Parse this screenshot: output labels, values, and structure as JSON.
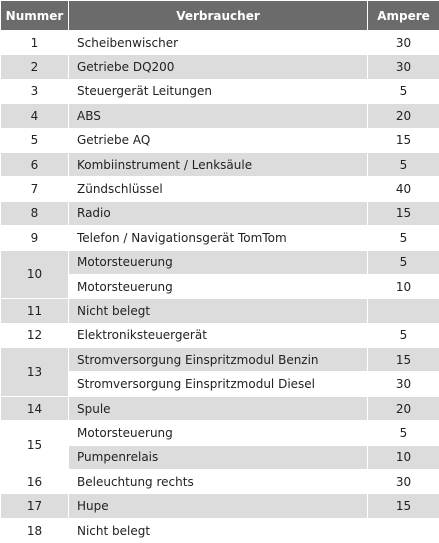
{
  "table": {
    "headers": [
      "Nummer",
      "Verbraucher",
      "Ampere"
    ],
    "rows": [
      {
        "nummer": 1,
        "entries": [
          {
            "verbraucher": "Scheibenwischer",
            "ampere": 30
          }
        ]
      },
      {
        "nummer": 2,
        "entries": [
          {
            "verbraucher": "Getriebe DQ200",
            "ampere": 30
          }
        ]
      },
      {
        "nummer": 3,
        "entries": [
          {
            "verbraucher": "Steuergerät Leitungen",
            "ampere": 5
          }
        ]
      },
      {
        "nummer": 4,
        "entries": [
          {
            "verbraucher": "ABS",
            "ampere": 20
          }
        ]
      },
      {
        "nummer": 5,
        "entries": [
          {
            "verbraucher": "Getriebe AQ",
            "ampere": 15
          }
        ]
      },
      {
        "nummer": 6,
        "entries": [
          {
            "verbraucher": "Kombiinstrument / Lenksäule",
            "ampere": 5
          }
        ]
      },
      {
        "nummer": 7,
        "entries": [
          {
            "verbraucher": "Zündschlüssel",
            "ampere": 40
          }
        ]
      },
      {
        "nummer": 8,
        "entries": [
          {
            "verbraucher": "Radio",
            "ampere": 15
          }
        ]
      },
      {
        "nummer": 9,
        "entries": [
          {
            "verbraucher": "Telefon / Navigationsgerät TomTom",
            "ampere": 5
          }
        ]
      },
      {
        "nummer": 10,
        "entries": [
          {
            "verbraucher": "Motorsteuerung",
            "ampere": 5
          },
          {
            "verbraucher": "Motorsteuerung",
            "ampere": 10
          }
        ]
      },
      {
        "nummer": 11,
        "entries": [
          {
            "verbraucher": "Nicht belegt"
          }
        ]
      },
      {
        "nummer": 12,
        "entries": [
          {
            "verbraucher": "Elektroniksteuergerät",
            "ampere": 5
          }
        ]
      },
      {
        "nummer": 13,
        "entries": [
          {
            "verbraucher": "Stromversorgung Einspritzmodul Benzin",
            "ampere": 15
          },
          {
            "verbraucher": "Stromversorgung Einspritzmodul Diesel",
            "ampere": 30
          }
        ]
      },
      {
        "nummer": 14,
        "entries": [
          {
            "verbraucher": "Spule",
            "ampere": 20
          }
        ]
      },
      {
        "nummer": 15,
        "entries": [
          {
            "verbraucher": "Motorsteuerung",
            "ampere": 5
          },
          {
            "verbraucher": "Pumpenrelais",
            "ampere": 10
          }
        ]
      },
      {
        "nummer": 16,
        "entries": [
          {
            "verbraucher": "Beleuchtung rechts",
            "ampere": 30
          }
        ]
      },
      {
        "nummer": 17,
        "entries": [
          {
            "verbraucher": "Hupe",
            "ampere": 15
          }
        ]
      },
      {
        "nummer": 18,
        "entries": [
          {
            "verbraucher": "Nicht belegt"
          }
        ]
      }
    ]
  }
}
